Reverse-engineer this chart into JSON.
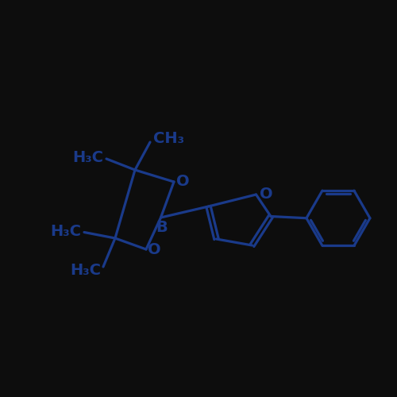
{
  "color": "#1a3a8a",
  "bg_color": "#0d0d0d",
  "line_width": 2.3,
  "font_size": 14,
  "font_size_sub": 9.5,
  "xlim": [
    0,
    10
  ],
  "ylim": [
    0,
    10
  ]
}
